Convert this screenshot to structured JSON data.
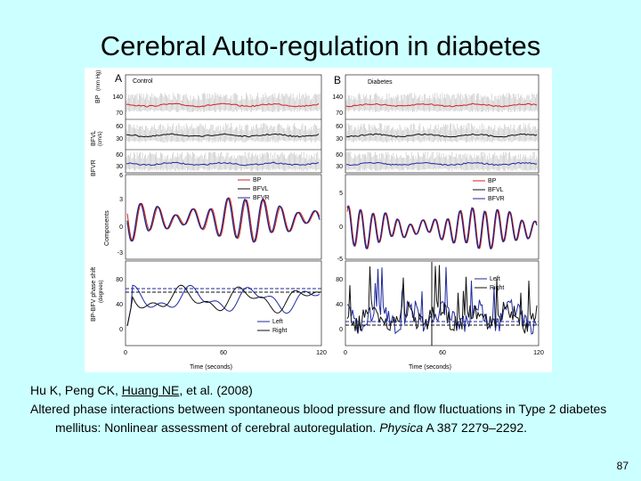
{
  "slide": {
    "title": "Cerebral Auto-regulation in diabetes",
    "page_number": "87"
  },
  "citation": {
    "authors_prefix": "Hu K, Peng CK, ",
    "authors_underlined": "Huang NE",
    "authors_suffix": ", et al. (2008)",
    "text_main": "Altered phase interactions between spontaneous blood pressure and flow fluctuations in Type 2 diabetes mellitus: Nonlinear assessment of cerebral autoregulation. ",
    "journal": "Physica",
    "text_tail": " A 387 2279–2292."
  },
  "figure": {
    "panels": [
      {
        "letter": "A",
        "title": "Control"
      },
      {
        "letter": "B",
        "title": "Diabetes"
      }
    ],
    "axis_labels": {
      "bp": "BP",
      "bp_units": "(mm Hg)",
      "bfvl": "BFVL",
      "bfv_units": "(cm/s)",
      "bfvr": "BFVR",
      "components": "Components",
      "phase": "BP-BFV phase shift",
      "phase_units": "(degrees)",
      "xlabel": "Time (seconds)"
    },
    "ticks": {
      "bp": [
        "140",
        "70"
      ],
      "bfvl": [
        "60",
        "30"
      ],
      "bfvr": [
        "60",
        "30"
      ],
      "comp_a": [
        "6",
        "3",
        "0",
        "-3"
      ],
      "comp_b": [
        "5",
        "0",
        "-5"
      ],
      "phase": [
        "80",
        "40",
        "0"
      ],
      "x": [
        "0",
        "60",
        "120"
      ]
    },
    "legends": {
      "components": [
        "BP",
        "BFVL",
        "BFVR"
      ],
      "phase": [
        "Left",
        "Right"
      ]
    },
    "colors": {
      "bp": "#d62020",
      "bfvl": "#111111",
      "bfvr": "#1f2a9e",
      "raw": "#c8c8c8"
    }
  }
}
